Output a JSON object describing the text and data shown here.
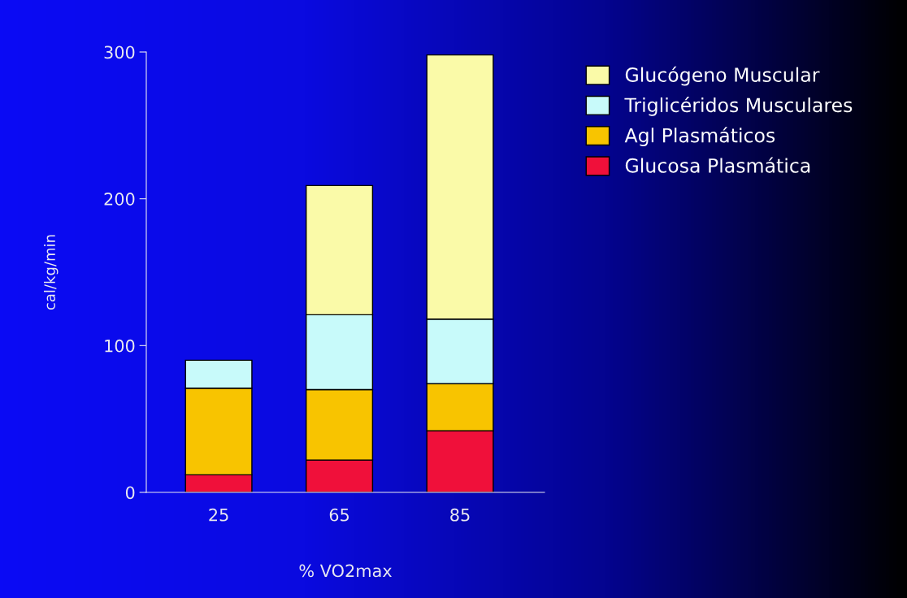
{
  "chart_data": {
    "type": "bar",
    "stacked": true,
    "xlabel": "% VO2max",
    "ylabel": "cal/kg/min",
    "categories": [
      "25",
      "65",
      "85"
    ],
    "series": [
      {
        "name": "Glucosa Plasmática",
        "color": "#f0103a",
        "values": [
          12,
          22,
          42
        ]
      },
      {
        "name": "Agl Plasmáticos",
        "color": "#f8c400",
        "values": [
          59,
          48,
          32
        ]
      },
      {
        "name": "Triglicéridos Musculares",
        "color": "#c8fafa",
        "values": [
          19,
          51,
          44
        ]
      },
      {
        "name": "Glucógeno Muscular",
        "color": "#fafaa8",
        "values": [
          null,
          88,
          180
        ]
      }
    ],
    "ylim": [
      0,
      300
    ],
    "yticks": [
      0,
      100,
      200,
      300
    ],
    "grid": false,
    "legend": "right"
  }
}
